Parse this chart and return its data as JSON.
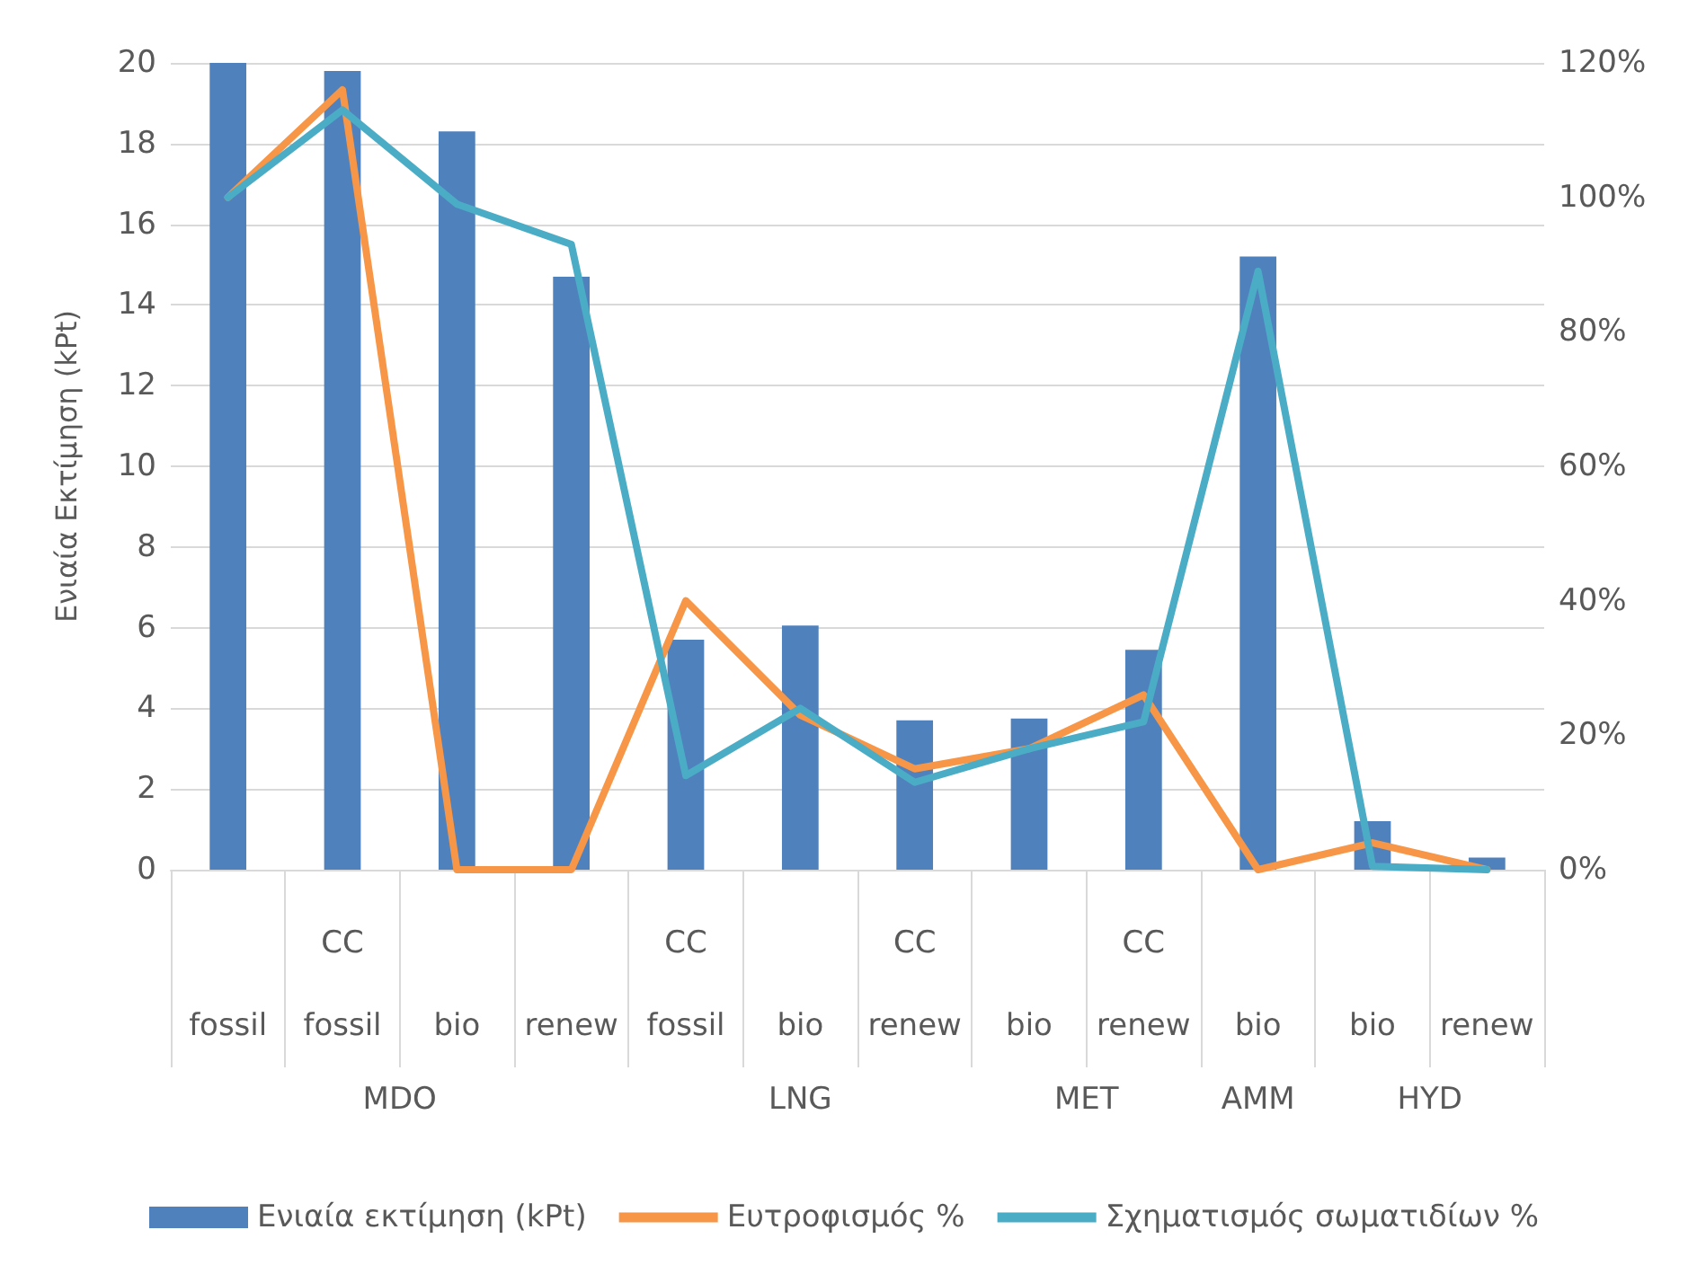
{
  "chart_data": {
    "type": "bar",
    "ylabel": "Ενιαία Εκτίμηση (kPt)",
    "categories": [
      "fossil",
      "CC\nfossil",
      "bio",
      "renew",
      "CC\nfossil",
      "bio",
      "CC\nrenew",
      "bio",
      "CC\nrenew",
      "bio",
      "bio",
      "renew"
    ],
    "series": [
      {
        "name": "Ενιαία εκτίμηση (kPt)",
        "color": "#4f81bd",
        "values": [
          20,
          19.8,
          18.3,
          14.7,
          5.7,
          6.05,
          3.7,
          3.75,
          5.45,
          15.2,
          1.2,
          0.3
        ]
      },
      {
        "name": "Ευτροφισμός %",
        "type": "line",
        "axis": "y2",
        "color": "#f79646",
        "values": [
          100,
          116,
          0,
          0,
          40,
          23,
          15,
          18,
          26,
          0,
          4,
          0
        ]
      },
      {
        "name": "Σχηματισμός σωματιδίων %",
        "type": "line",
        "axis": "y2",
        "color": "#4bacc6",
        "values": [
          100,
          113,
          99,
          93,
          14,
          24,
          13,
          18,
          22,
          89,
          0.5,
          0
        ]
      }
    ],
    "annotations": [
      "MDO",
      "LNG",
      "MET",
      "AMM",
      "HYD"
    ],
    "ylim": [
      0,
      20
    ],
    "yticks": [
      0,
      2,
      4,
      6,
      8,
      10,
      12,
      14,
      16,
      18,
      20
    ],
    "y2lim": [
      0,
      120
    ],
    "y2ticks": [
      {
        "value": 0,
        "label": "0%"
      },
      {
        "value": 20,
        "label": "20%"
      },
      {
        "value": 40,
        "label": "40%"
      },
      {
        "value": 60,
        "label": "60%"
      },
      {
        "value": 80,
        "label": "80%"
      },
      {
        "value": 100,
        "label": "100%"
      },
      {
        "value": 120,
        "label": "120%"
      }
    ],
    "grid": "y",
    "legend": "bottom",
    "marker": "none",
    "line_style": "solid"
  }
}
